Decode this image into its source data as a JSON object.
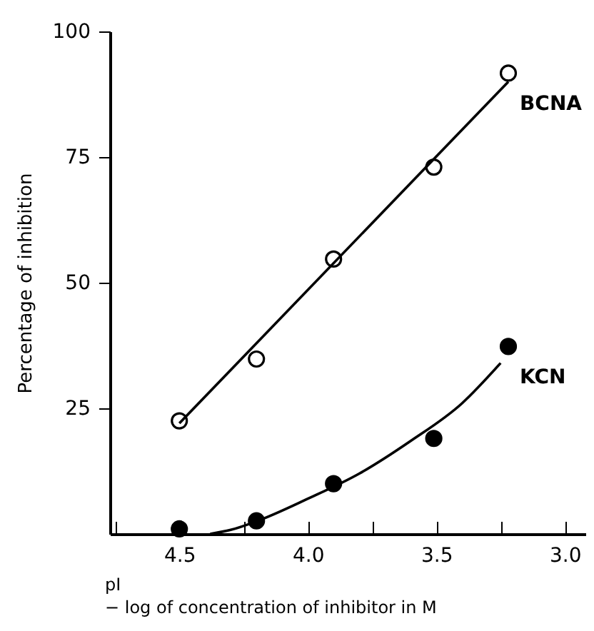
{
  "chart_data": {
    "type": "scatter",
    "xlabel": "pI\n− log of concentration of inhibitor in M",
    "ylabel": "Percentage of inhibition",
    "xlim": [
      4.77,
      2.92
    ],
    "ylim": [
      0,
      100
    ],
    "xticks": [
      {
        "value": 4.75,
        "label": null
      },
      {
        "value": 4.5,
        "label": "4.5"
      },
      {
        "value": 4.25,
        "label": null
      },
      {
        "value": 4.0,
        "label": "4.0"
      },
      {
        "value": 3.75,
        "label": null
      },
      {
        "value": 3.5,
        "label": "3.5"
      },
      {
        "value": 3.25,
        "label": null
      },
      {
        "value": 3.0,
        "label": "3.0"
      }
    ],
    "yticks": [
      25,
      50,
      75,
      100
    ],
    "grid": false,
    "series": [
      {
        "name": "BCNA",
        "marker": "circle",
        "color": "#ffffff",
        "x": [
          4.5,
          4.2,
          3.9,
          3.51,
          3.22
        ],
        "values": [
          22.5,
          34.8,
          54.7,
          73,
          91.7
        ]
      },
      {
        "name": "KCN",
        "marker": "circle",
        "color": "#000000",
        "x": [
          4.5,
          4.2,
          3.9,
          3.51,
          3.22
        ],
        "values": [
          1,
          2.6,
          10,
          19,
          37.3
        ]
      },
      {
        "type": "line",
        "marker": "none",
        "color": "#000000",
        "x": [
          4.5,
          3.22
        ],
        "values": [
          22,
          90
        ]
      },
      {
        "type": "line",
        "marker": "none",
        "color": "#000000",
        "x": [
          4.38,
          4.3,
          4.2,
          4.0,
          3.8,
          3.6,
          3.4,
          3.25
        ],
        "values": [
          0,
          0.8,
          2.5,
          7,
          12,
          18.5,
          26,
          34
        ]
      }
    ]
  }
}
